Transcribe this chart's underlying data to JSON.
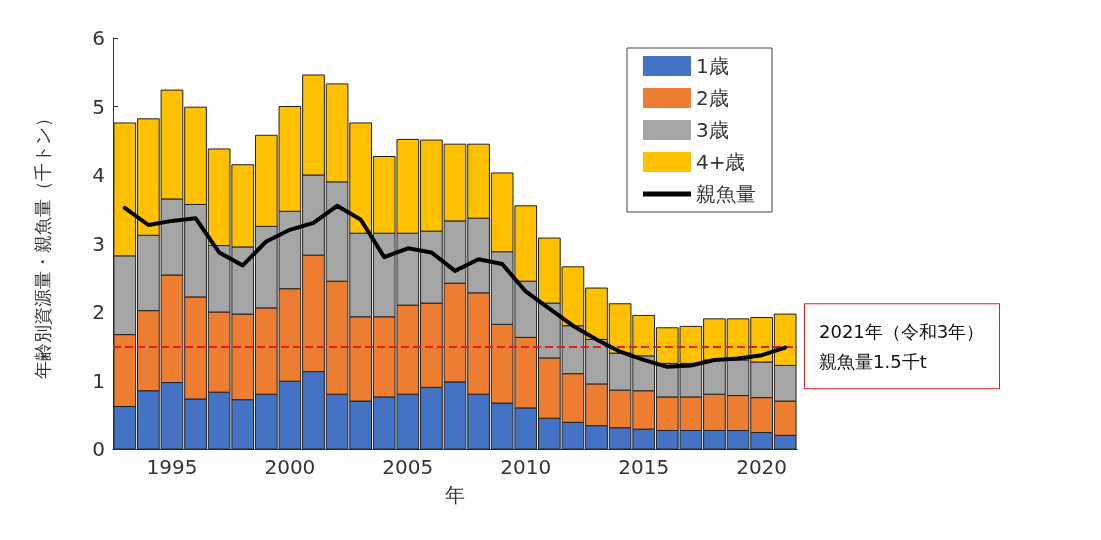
{
  "chart_data": {
    "type": "bar",
    "stacked": true,
    "xlabel": "年",
    "ylabel": "年齢別資源量・親魚量（千トン）",
    "x": [
      1993,
      1994,
      1995,
      1996,
      1997,
      1998,
      1999,
      2000,
      2001,
      2002,
      2003,
      2004,
      2005,
      2006,
      2007,
      2008,
      2009,
      2010,
      2011,
      2012,
      2013,
      2014,
      2015,
      2016,
      2017,
      2018,
      2019,
      2020,
      2021
    ],
    "series": [
      {
        "name": "1歳",
        "color": "#4472c4",
        "values": [
          0.62,
          0.85,
          0.97,
          0.73,
          0.83,
          0.72,
          0.8,
          0.99,
          1.13,
          0.8,
          0.7,
          0.76,
          0.8,
          0.9,
          0.98,
          0.8,
          0.67,
          0.6,
          0.45,
          0.39,
          0.34,
          0.31,
          0.29,
          0.27,
          0.27,
          0.27,
          0.27,
          0.24,
          0.2
        ]
      },
      {
        "name": "2歳",
        "color": "#ed7d31",
        "values": [
          1.05,
          1.17,
          1.57,
          1.49,
          1.17,
          1.25,
          1.26,
          1.35,
          1.7,
          1.65,
          1.23,
          1.17,
          1.3,
          1.23,
          1.44,
          1.48,
          1.15,
          1.03,
          0.88,
          0.71,
          0.61,
          0.55,
          0.56,
          0.49,
          0.49,
          0.53,
          0.51,
          0.51,
          0.5
        ]
      },
      {
        "name": "3歳",
        "color": "#a5a5a5",
        "values": [
          1.15,
          1.1,
          1.11,
          1.35,
          0.97,
          0.98,
          1.19,
          1.13,
          1.17,
          1.45,
          1.22,
          1.22,
          1.05,
          1.05,
          0.91,
          1.09,
          1.06,
          0.82,
          0.8,
          0.7,
          0.65,
          0.54,
          0.51,
          0.49,
          0.49,
          0.5,
          0.52,
          0.52,
          0.52
        ]
      },
      {
        "name": "4+歳",
        "color": "#ffc000",
        "values": [
          1.94,
          1.7,
          1.59,
          1.42,
          1.41,
          1.2,
          1.33,
          1.53,
          1.46,
          1.43,
          1.61,
          1.12,
          1.37,
          1.33,
          1.12,
          1.08,
          1.15,
          1.1,
          0.95,
          0.86,
          0.75,
          0.72,
          0.59,
          0.52,
          0.54,
          0.6,
          0.6,
          0.65,
          0.75
        ]
      },
      {
        "name": "親魚量",
        "type": "line",
        "color": "#000000",
        "values": [
          3.52,
          3.27,
          3.33,
          3.37,
          2.87,
          2.68,
          3.03,
          3.2,
          3.3,
          3.55,
          3.35,
          2.8,
          2.93,
          2.87,
          2.6,
          2.77,
          2.7,
          2.3,
          2.05,
          1.8,
          1.6,
          1.42,
          1.3,
          1.2,
          1.22,
          1.3,
          1.32,
          1.37,
          1.48
        ]
      }
    ],
    "xlim": [
      1992.5,
      2021.5
    ],
    "xticks": [
      1995,
      2000,
      2005,
      2010,
      2015,
      2020
    ],
    "ylim": [
      0,
      6
    ],
    "yticks": [
      0,
      1,
      2,
      3,
      4,
      5,
      6
    ],
    "ref_lines": [
      {
        "axis": "y",
        "value": 1.5,
        "label": "2021年（令和3年）親魚量1.5千t",
        "color": "#e02020",
        "line_style": "dashed"
      }
    ],
    "legend": "top right",
    "marker": "none",
    "line_style": "solid",
    "grid": false
  }
}
